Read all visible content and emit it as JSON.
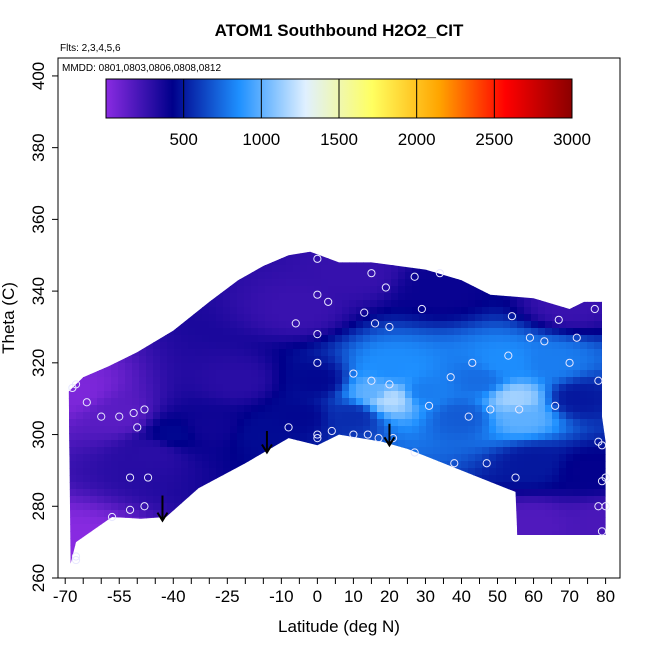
{
  "chart_data": {
    "type": "heatmap",
    "title": "ATOM1 Southbound H2O2_CIT",
    "annotations": [
      "Flts: 2,3,4,5,6",
      "MMDD: 0801,0803,0806,0808,0812"
    ],
    "xlabel": "Latitude (deg N)",
    "ylabel": "Theta (C)",
    "xlim": [
      -72,
      84
    ],
    "ylim": [
      260,
      405
    ],
    "x_ticks": [
      -70,
      -55,
      -40,
      -25,
      -10,
      0,
      10,
      20,
      30,
      40,
      50,
      60,
      70,
      80
    ],
    "x_tick_labels": [
      "-70",
      "-55",
      "-40",
      "-25",
      "-10",
      "0",
      "10",
      "20",
      "30",
      "40",
      "50",
      "60",
      "70",
      "80"
    ],
    "y_ticks": [
      260,
      280,
      300,
      320,
      340,
      360,
      380,
      400
    ],
    "y_tick_labels": [
      "260",
      "280",
      "300",
      "320",
      "340",
      "360",
      "380",
      "400"
    ],
    "colorbar": {
      "min": 0,
      "max": 3000,
      "ticks": [
        500,
        1000,
        1500,
        2000,
        2500,
        3000
      ],
      "tick_labels": [
        "500",
        "1000",
        "1500",
        "2000",
        "2500",
        "3000"
      ],
      "colors": [
        "#8a2be2",
        "#00008b",
        "#1e90ff",
        "#e0f0ff",
        "#ffff60",
        "#ffa500",
        "#ff0000",
        "#8b0000"
      ]
    },
    "domain_outline": [
      [
        -68.5,
        264
      ],
      [
        -67,
        270
      ],
      [
        -57,
        277
      ],
      [
        -49,
        276.5
      ],
      [
        -42,
        277
      ],
      [
        -33,
        285
      ],
      [
        -20,
        292
      ],
      [
        -8,
        299
      ],
      [
        0,
        297
      ],
      [
        6,
        300
      ],
      [
        18,
        298
      ],
      [
        25,
        296
      ],
      [
        35,
        292
      ],
      [
        45,
        288
      ],
      [
        55,
        284
      ],
      [
        55.5,
        272
      ],
      [
        80,
        272
      ],
      [
        80,
        298
      ],
      [
        79,
        305
      ],
      [
        79,
        337
      ],
      [
        74,
        337
      ],
      [
        70,
        335
      ],
      [
        60,
        338
      ],
      [
        48,
        339
      ],
      [
        40,
        343
      ],
      [
        30,
        346
      ],
      [
        15,
        348
      ],
      [
        6,
        348
      ],
      [
        -2,
        351
      ],
      [
        -8,
        350
      ],
      [
        -15,
        347
      ],
      [
        -22,
        343
      ],
      [
        -30,
        337
      ],
      [
        -40,
        329
      ],
      [
        -50,
        323
      ],
      [
        -58,
        319
      ],
      [
        -65,
        316
      ],
      [
        -69,
        312
      ]
    ],
    "field_points": [
      {
        "x": -68,
        "y": 268,
        "v": 5
      },
      {
        "x": -68,
        "y": 312,
        "v": 40
      },
      {
        "x": -55,
        "y": 305,
        "v": 150
      },
      {
        "x": -45,
        "y": 295,
        "v": 300
      },
      {
        "x": -40,
        "y": 300,
        "v": 450
      },
      {
        "x": -30,
        "y": 302,
        "v": 380
      },
      {
        "x": -22,
        "y": 315,
        "v": 300
      },
      {
        "x": -15,
        "y": 300,
        "v": 460
      },
      {
        "x": -5,
        "y": 305,
        "v": 450
      },
      {
        "x": -5,
        "y": 335,
        "v": 250
      },
      {
        "x": 0,
        "y": 315,
        "v": 450
      },
      {
        "x": 10,
        "y": 305,
        "v": 560
      },
      {
        "x": 16,
        "y": 312,
        "v": 1000
      },
      {
        "x": 20,
        "y": 310,
        "v": 1200
      },
      {
        "x": 20,
        "y": 318,
        "v": 850
      },
      {
        "x": 30,
        "y": 312,
        "v": 800
      },
      {
        "x": 40,
        "y": 305,
        "v": 700
      },
      {
        "x": 45,
        "y": 315,
        "v": 750
      },
      {
        "x": 52,
        "y": 320,
        "v": 850
      },
      {
        "x": 55,
        "y": 310,
        "v": 1150
      },
      {
        "x": 57,
        "y": 305,
        "v": 1000
      },
      {
        "x": 65,
        "y": 320,
        "v": 800
      },
      {
        "x": 60,
        "y": 292,
        "v": 500
      },
      {
        "x": 72,
        "y": 310,
        "v": 500
      },
      {
        "x": 75,
        "y": 290,
        "v": 420
      },
      {
        "x": 60,
        "y": 275,
        "v": 180
      },
      {
        "x": 78,
        "y": 275,
        "v": 200
      },
      {
        "x": 35,
        "y": 340,
        "v": 400
      },
      {
        "x": 70,
        "y": 336,
        "v": 250
      },
      {
        "x": 10,
        "y": 345,
        "v": 260
      }
    ],
    "obs_points": [
      [
        -67,
        265
      ],
      [
        -67,
        266
      ],
      [
        -68,
        313
      ],
      [
        -67,
        314
      ],
      [
        -64,
        309
      ],
      [
        -60,
        305
      ],
      [
        -55,
        305
      ],
      [
        -51,
        306
      ],
      [
        -48,
        307
      ],
      [
        -50,
        302
      ],
      [
        -52,
        288
      ],
      [
        -47,
        288
      ],
      [
        -57,
        277
      ],
      [
        -52,
        279
      ],
      [
        -48,
        280
      ],
      [
        -8,
        302
      ],
      [
        0,
        300
      ],
      [
        0,
        299
      ],
      [
        4,
        301
      ],
      [
        10,
        300
      ],
      [
        14,
        300
      ],
      [
        17,
        299
      ],
      [
        21,
        299
      ],
      [
        27,
        295
      ],
      [
        38,
        292
      ],
      [
        47,
        292
      ],
      [
        55,
        288
      ],
      [
        -6,
        331
      ],
      [
        0,
        328
      ],
      [
        0,
        320
      ],
      [
        0,
        339
      ],
      [
        3,
        337
      ],
      [
        13,
        334
      ],
      [
        16,
        331
      ],
      [
        20,
        330
      ],
      [
        15,
        345
      ],
      [
        19,
        341
      ],
      [
        27,
        344
      ],
      [
        34,
        345
      ],
      [
        29,
        335
      ],
      [
        10,
        317
      ],
      [
        15,
        315
      ],
      [
        20,
        314
      ],
      [
        31,
        308
      ],
      [
        37,
        316
      ],
      [
        42,
        305
      ],
      [
        43,
        320
      ],
      [
        48,
        307
      ],
      [
        54,
        333
      ],
      [
        53,
        322
      ],
      [
        56,
        307
      ],
      [
        59,
        327
      ],
      [
        63,
        326
      ],
      [
        66,
        308
      ],
      [
        67,
        332
      ],
      [
        70,
        320
      ],
      [
        72,
        327
      ],
      [
        77,
        335
      ],
      [
        78,
        315
      ],
      [
        78,
        298
      ],
      [
        79,
        297
      ],
      [
        80,
        288
      ],
      [
        79,
        287
      ],
      [
        78,
        280
      ],
      [
        80,
        280
      ],
      [
        79,
        273
      ],
      [
        0,
        349
      ]
    ],
    "arrows": [
      {
        "x": -43,
        "y_top": 283,
        "y_bottom": 276
      },
      {
        "x": -14,
        "y_top": 301,
        "y_bottom": 295
      },
      {
        "x": 20,
        "y_top": 303,
        "y_bottom": 297
      }
    ]
  }
}
